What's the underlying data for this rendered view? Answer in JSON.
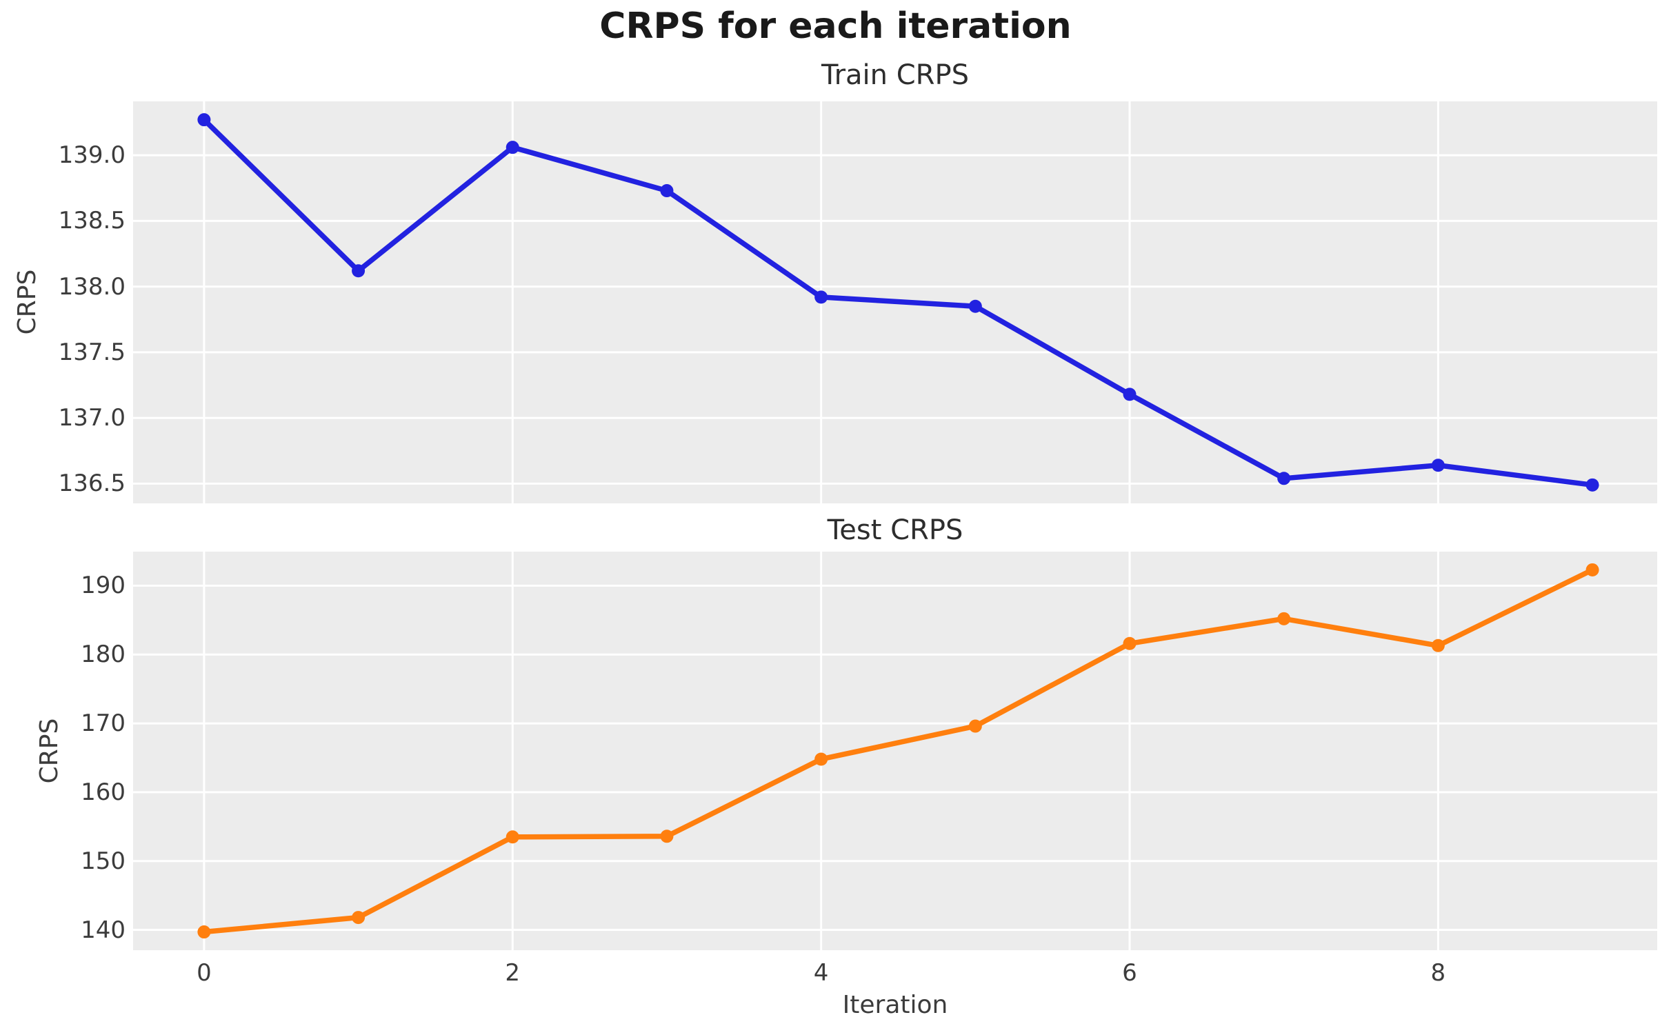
{
  "figure": {
    "suptitle": "CRPS for each iteration",
    "xlabel": "Iteration"
  },
  "chart_data": [
    {
      "type": "line",
      "name": "train",
      "title": "Train CRPS",
      "ylabel": "CRPS",
      "line_color": "#2222e0",
      "marker": "circle",
      "grid": true,
      "plot_background": "#ececec",
      "gridline_color": "#ffffff",
      "x": [
        0,
        1,
        2,
        3,
        4,
        5,
        6,
        7,
        8,
        9
      ],
      "values": [
        139.27,
        138.12,
        139.06,
        138.73,
        137.92,
        137.85,
        137.18,
        136.54,
        136.64,
        136.49
      ],
      "xlim": [
        -0.46,
        9.42
      ],
      "ylim": [
        136.35,
        139.41
      ],
      "yticks": [
        {
          "v": 139.0,
          "label": "139.0"
        },
        {
          "v": 138.5,
          "label": "138.5"
        },
        {
          "v": 138.0,
          "label": "138.0"
        },
        {
          "v": 137.5,
          "label": "137.5"
        },
        {
          "v": 137.0,
          "label": "137.0"
        },
        {
          "v": 136.5,
          "label": "136.5"
        }
      ],
      "xticks": [
        {
          "v": 0,
          "label": "0"
        },
        {
          "v": 2,
          "label": "2"
        },
        {
          "v": 4,
          "label": "4"
        },
        {
          "v": 6,
          "label": "6"
        },
        {
          "v": 8,
          "label": "8"
        }
      ],
      "show_xtick_labels": false
    },
    {
      "type": "line",
      "name": "test",
      "title": "Test CRPS",
      "ylabel": "CRPS",
      "line_color": "#ff7f0e",
      "marker": "circle",
      "grid": true,
      "plot_background": "#ececec",
      "gridline_color": "#ffffff",
      "x": [
        0,
        1,
        2,
        3,
        4,
        5,
        6,
        7,
        8,
        9
      ],
      "values": [
        139.7,
        141.8,
        153.5,
        153.6,
        164.8,
        169.6,
        181.6,
        185.2,
        181.3,
        192.3
      ],
      "xlim": [
        -0.46,
        9.42
      ],
      "ylim": [
        137.05,
        194.95
      ],
      "yticks": [
        {
          "v": 190,
          "label": "190"
        },
        {
          "v": 180,
          "label": "180"
        },
        {
          "v": 170,
          "label": "170"
        },
        {
          "v": 160,
          "label": "160"
        },
        {
          "v": 150,
          "label": "150"
        },
        {
          "v": 140,
          "label": "140"
        }
      ],
      "xticks": [
        {
          "v": 0,
          "label": "0"
        },
        {
          "v": 2,
          "label": "2"
        },
        {
          "v": 4,
          "label": "4"
        },
        {
          "v": 6,
          "label": "6"
        },
        {
          "v": 8,
          "label": "8"
        }
      ],
      "show_xtick_labels": true
    }
  ]
}
